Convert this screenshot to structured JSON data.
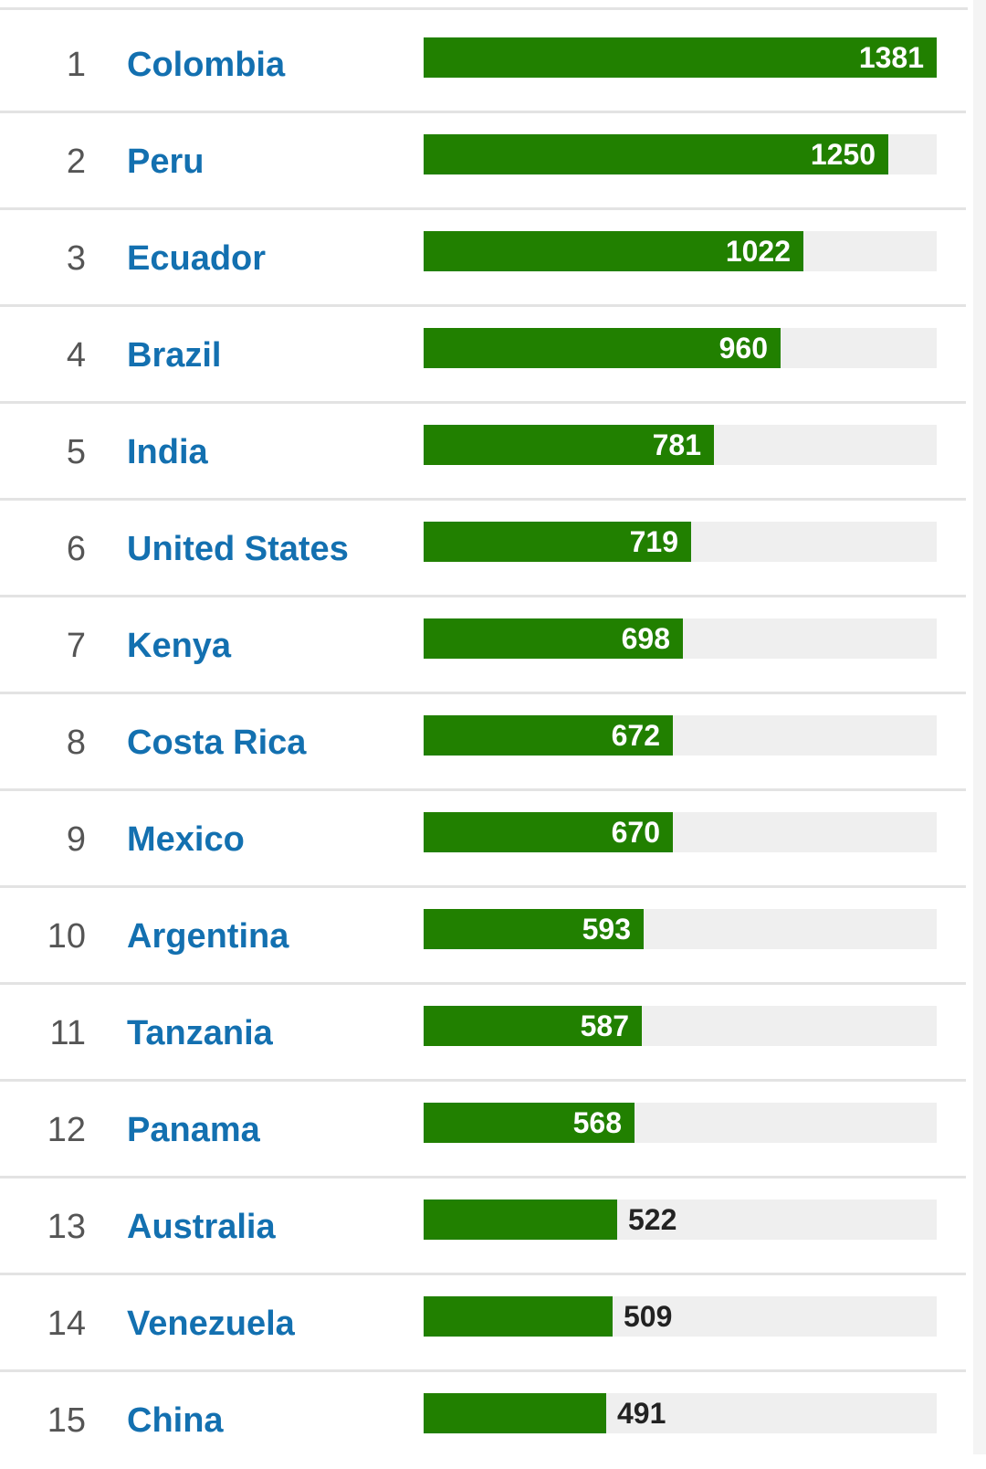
{
  "chart_data": {
    "type": "bar",
    "orientation": "horizontal",
    "max_value": 1381,
    "bar_color": "#218000",
    "track_color": "#efefef",
    "label_color": "#1370b0",
    "rows": [
      {
        "rank": "1",
        "country": "Colombia",
        "value": 1381
      },
      {
        "rank": "2",
        "country": "Peru",
        "value": 1250
      },
      {
        "rank": "3",
        "country": "Ecuador",
        "value": 1022
      },
      {
        "rank": "4",
        "country": "Brazil",
        "value": 960
      },
      {
        "rank": "5",
        "country": "India",
        "value": 781
      },
      {
        "rank": "6",
        "country": "United States",
        "value": 719
      },
      {
        "rank": "7",
        "country": "Kenya",
        "value": 698
      },
      {
        "rank": "8",
        "country": "Costa Rica",
        "value": 672
      },
      {
        "rank": "9",
        "country": "Mexico",
        "value": 670
      },
      {
        "rank": "10",
        "country": "Argentina",
        "value": 593
      },
      {
        "rank": "11",
        "country": "Tanzania",
        "value": 587
      },
      {
        "rank": "12",
        "country": "Panama",
        "value": 568
      },
      {
        "rank": "13",
        "country": "Australia",
        "value": 522
      },
      {
        "rank": "14",
        "country": "Venezuela",
        "value": 509
      },
      {
        "rank": "15",
        "country": "China",
        "value": 491
      }
    ]
  }
}
